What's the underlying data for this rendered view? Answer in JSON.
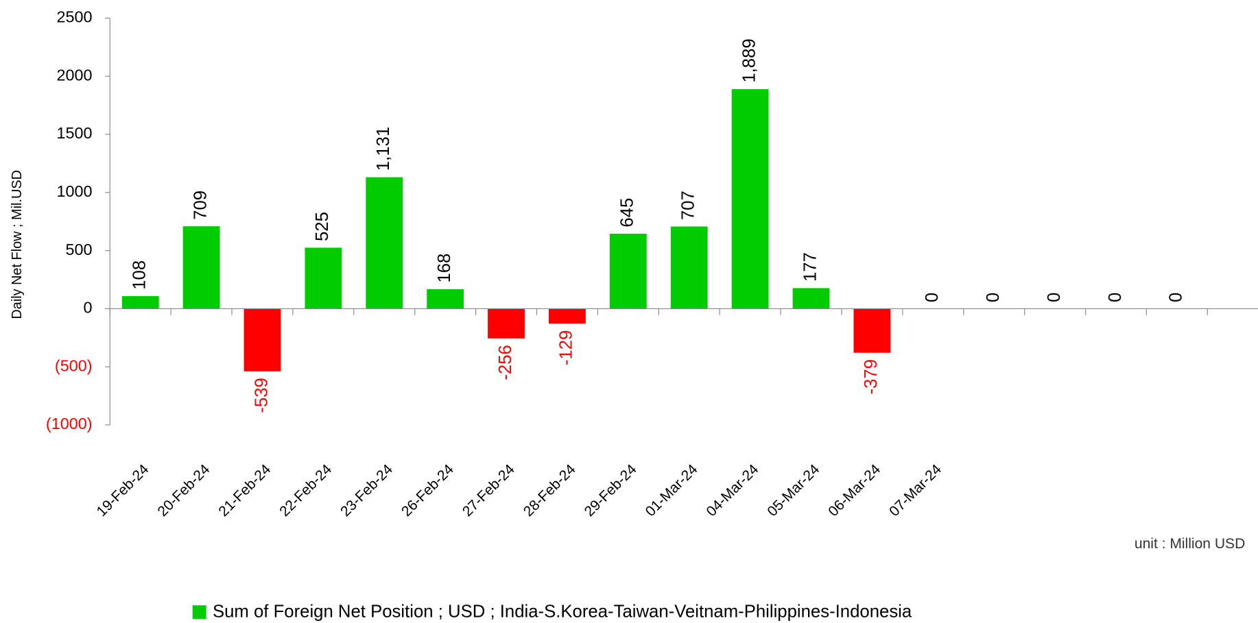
{
  "chart_data": {
    "type": "bar",
    "y_axis_label": "Daily Net Flow ; Mil.USD",
    "annotation": "unit : Million USD",
    "categories": [
      "19-Feb-24",
      "20-Feb-24",
      "21-Feb-24",
      "22-Feb-24",
      "23-Feb-24",
      "26-Feb-24",
      "27-Feb-24",
      "28-Feb-24",
      "29-Feb-24",
      "01-Mar-24",
      "04-Mar-24",
      "05-Mar-24",
      "06-Mar-24",
      "07-Mar-24",
      null,
      null,
      null,
      null
    ],
    "series": [
      {
        "name": "Sum of Foreign Net Position ; USD ; India-S.Korea-Taiwan-Veitnam-Philippines-Indonesia",
        "color": "#00cc00",
        "negative_color": "#ff0000",
        "values": [
          108,
          709,
          -539,
          525,
          1131,
          168,
          -256,
          -129,
          645,
          707,
          1889,
          177,
          -379,
          0,
          0,
          0,
          0,
          0
        ],
        "value_labels": [
          "108",
          "709",
          "-539",
          "525",
          "1,131",
          "168",
          "-256",
          "-129",
          "645",
          "707",
          "1,889",
          "177",
          "-379",
          "0",
          "0",
          "0",
          "0",
          "0"
        ]
      }
    ],
    "ylim": [
      -1000,
      2500
    ],
    "yticks": [
      {
        "value": -1000,
        "label": "(1000)"
      },
      {
        "value": -500,
        "label": "(500)"
      },
      0,
      500,
      1000,
      1500,
      2000,
      2500
    ],
    "legend": "bottom"
  }
}
